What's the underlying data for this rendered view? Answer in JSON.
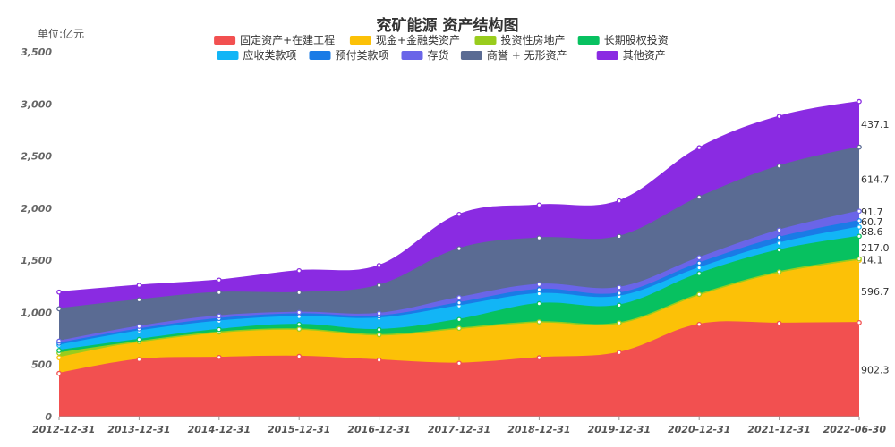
{
  "chart_data": {
    "type": "area",
    "stacked": true,
    "title": "兖矿能源 资产结构图",
    "unit_label": "单位:亿元",
    "ylim": [
      0,
      3500
    ],
    "yticks": [
      "0",
      "500",
      "1,000",
      "1,500",
      "2,000",
      "2,500",
      "3,000",
      "3,500"
    ],
    "ytick_values": [
      0,
      500,
      1000,
      1500,
      2000,
      2500,
      3000,
      3500
    ],
    "x": [
      "2012-12-31",
      "2013-12-31",
      "2014-12-31",
      "2015-12-31",
      "2016-12-31",
      "2017-12-31",
      "2018-12-31",
      "2019-12-31",
      "2020-12-31",
      "2021-12-31",
      "2022-06-30"
    ],
    "legend_placement": "top-center",
    "series": [
      {
        "name": "固定资产+在建工程",
        "color": "#f25050",
        "values": [
          415,
          548,
          568,
          578,
          543,
          512,
          565,
          615,
          885,
          895,
          902.3
        ]
      },
      {
        "name": "现金+金融类资产",
        "color": "#fcc107",
        "values": [
          150,
          168,
          238,
          258,
          238,
          330,
          340,
          280,
          285,
          480,
          596.7
        ]
      },
      {
        "name": "投资性房地产",
        "color": "#99cc1d",
        "values": [
          45,
          5,
          5,
          4,
          4,
          5,
          4,
          4,
          3,
          14,
          14.1
        ]
      },
      {
        "name": "长期股权投资",
        "color": "#07c160",
        "values": [
          25,
          20,
          25,
          45,
          50,
          85,
          175,
          170,
          200,
          210,
          217.0
        ]
      },
      {
        "name": "应收类款项",
        "color": "#12b5f6",
        "values": [
          50,
          80,
          80,
          75,
          110,
          130,
          95,
          85,
          55,
          65,
          88.6
        ]
      },
      {
        "name": "预付类款项",
        "color": "#1a7be6",
        "values": [
          20,
          20,
          25,
          25,
          20,
          30,
          40,
          30,
          45,
          55,
          60.7
        ]
      },
      {
        "name": "存货",
        "color": "#6a65e8",
        "values": [
          20,
          25,
          25,
          15,
          25,
          50,
          50,
          55,
          52,
          70,
          91.7
        ]
      },
      {
        "name": "商誉 + 无形资产",
        "color": "#5a6b93",
        "values": [
          310,
          255,
          225,
          190,
          270,
          470,
          445,
          490,
          580,
          615,
          614.7
        ]
      },
      {
        "name": "其他资产",
        "color": "#8a2be2",
        "values": [
          160,
          139,
          119,
          210,
          190,
          328,
          316,
          341,
          475,
          476,
          437.1
        ]
      }
    ],
    "end_labels": [
      "902.3",
      "596.7",
      "14.1",
      "217.0",
      "88.6",
      "60.7",
      "91.7",
      "614.7",
      "437.1"
    ]
  }
}
